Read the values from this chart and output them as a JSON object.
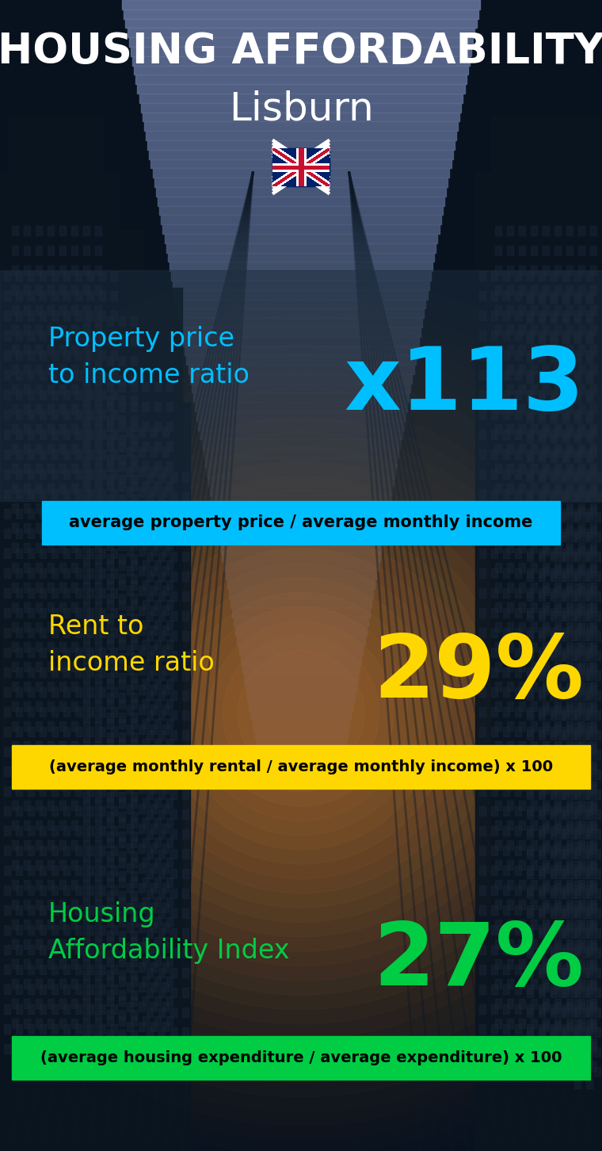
{
  "title_line1": "HOUSING AFFORDABILITY",
  "title_line2": "Lisburn",
  "flag_emoji": "🇬🇧",
  "section1_label": "Property price\nto income ratio",
  "section1_value": "x113",
  "section1_label_color": "#00BFFF",
  "section1_value_color": "#00BFFF",
  "section1_band_text": "average property price / average monthly income",
  "section1_band_bg": "#00BFFF",
  "section1_band_text_color": "#000000",
  "section2_label": "Rent to\nincome ratio",
  "section2_value": "29%",
  "section2_label_color": "#FFD700",
  "section2_value_color": "#FFD700",
  "section2_band_text": "(average monthly rental / average monthly income) x 100",
  "section2_band_bg": "#FFD700",
  "section2_band_text_color": "#000000",
  "section3_label": "Housing\nAffordability Index",
  "section3_value": "27%",
  "section3_label_color": "#00CC44",
  "section3_value_color": "#00CC44",
  "section3_band_text": "(average housing expenditure / average expenditure) x 100",
  "section3_band_bg": "#00CC44",
  "section3_band_text_color": "#000000",
  "bg_dark": "#060d18",
  "bg_mid": "#0d1d2e",
  "sky_color": "#4a7a9b"
}
